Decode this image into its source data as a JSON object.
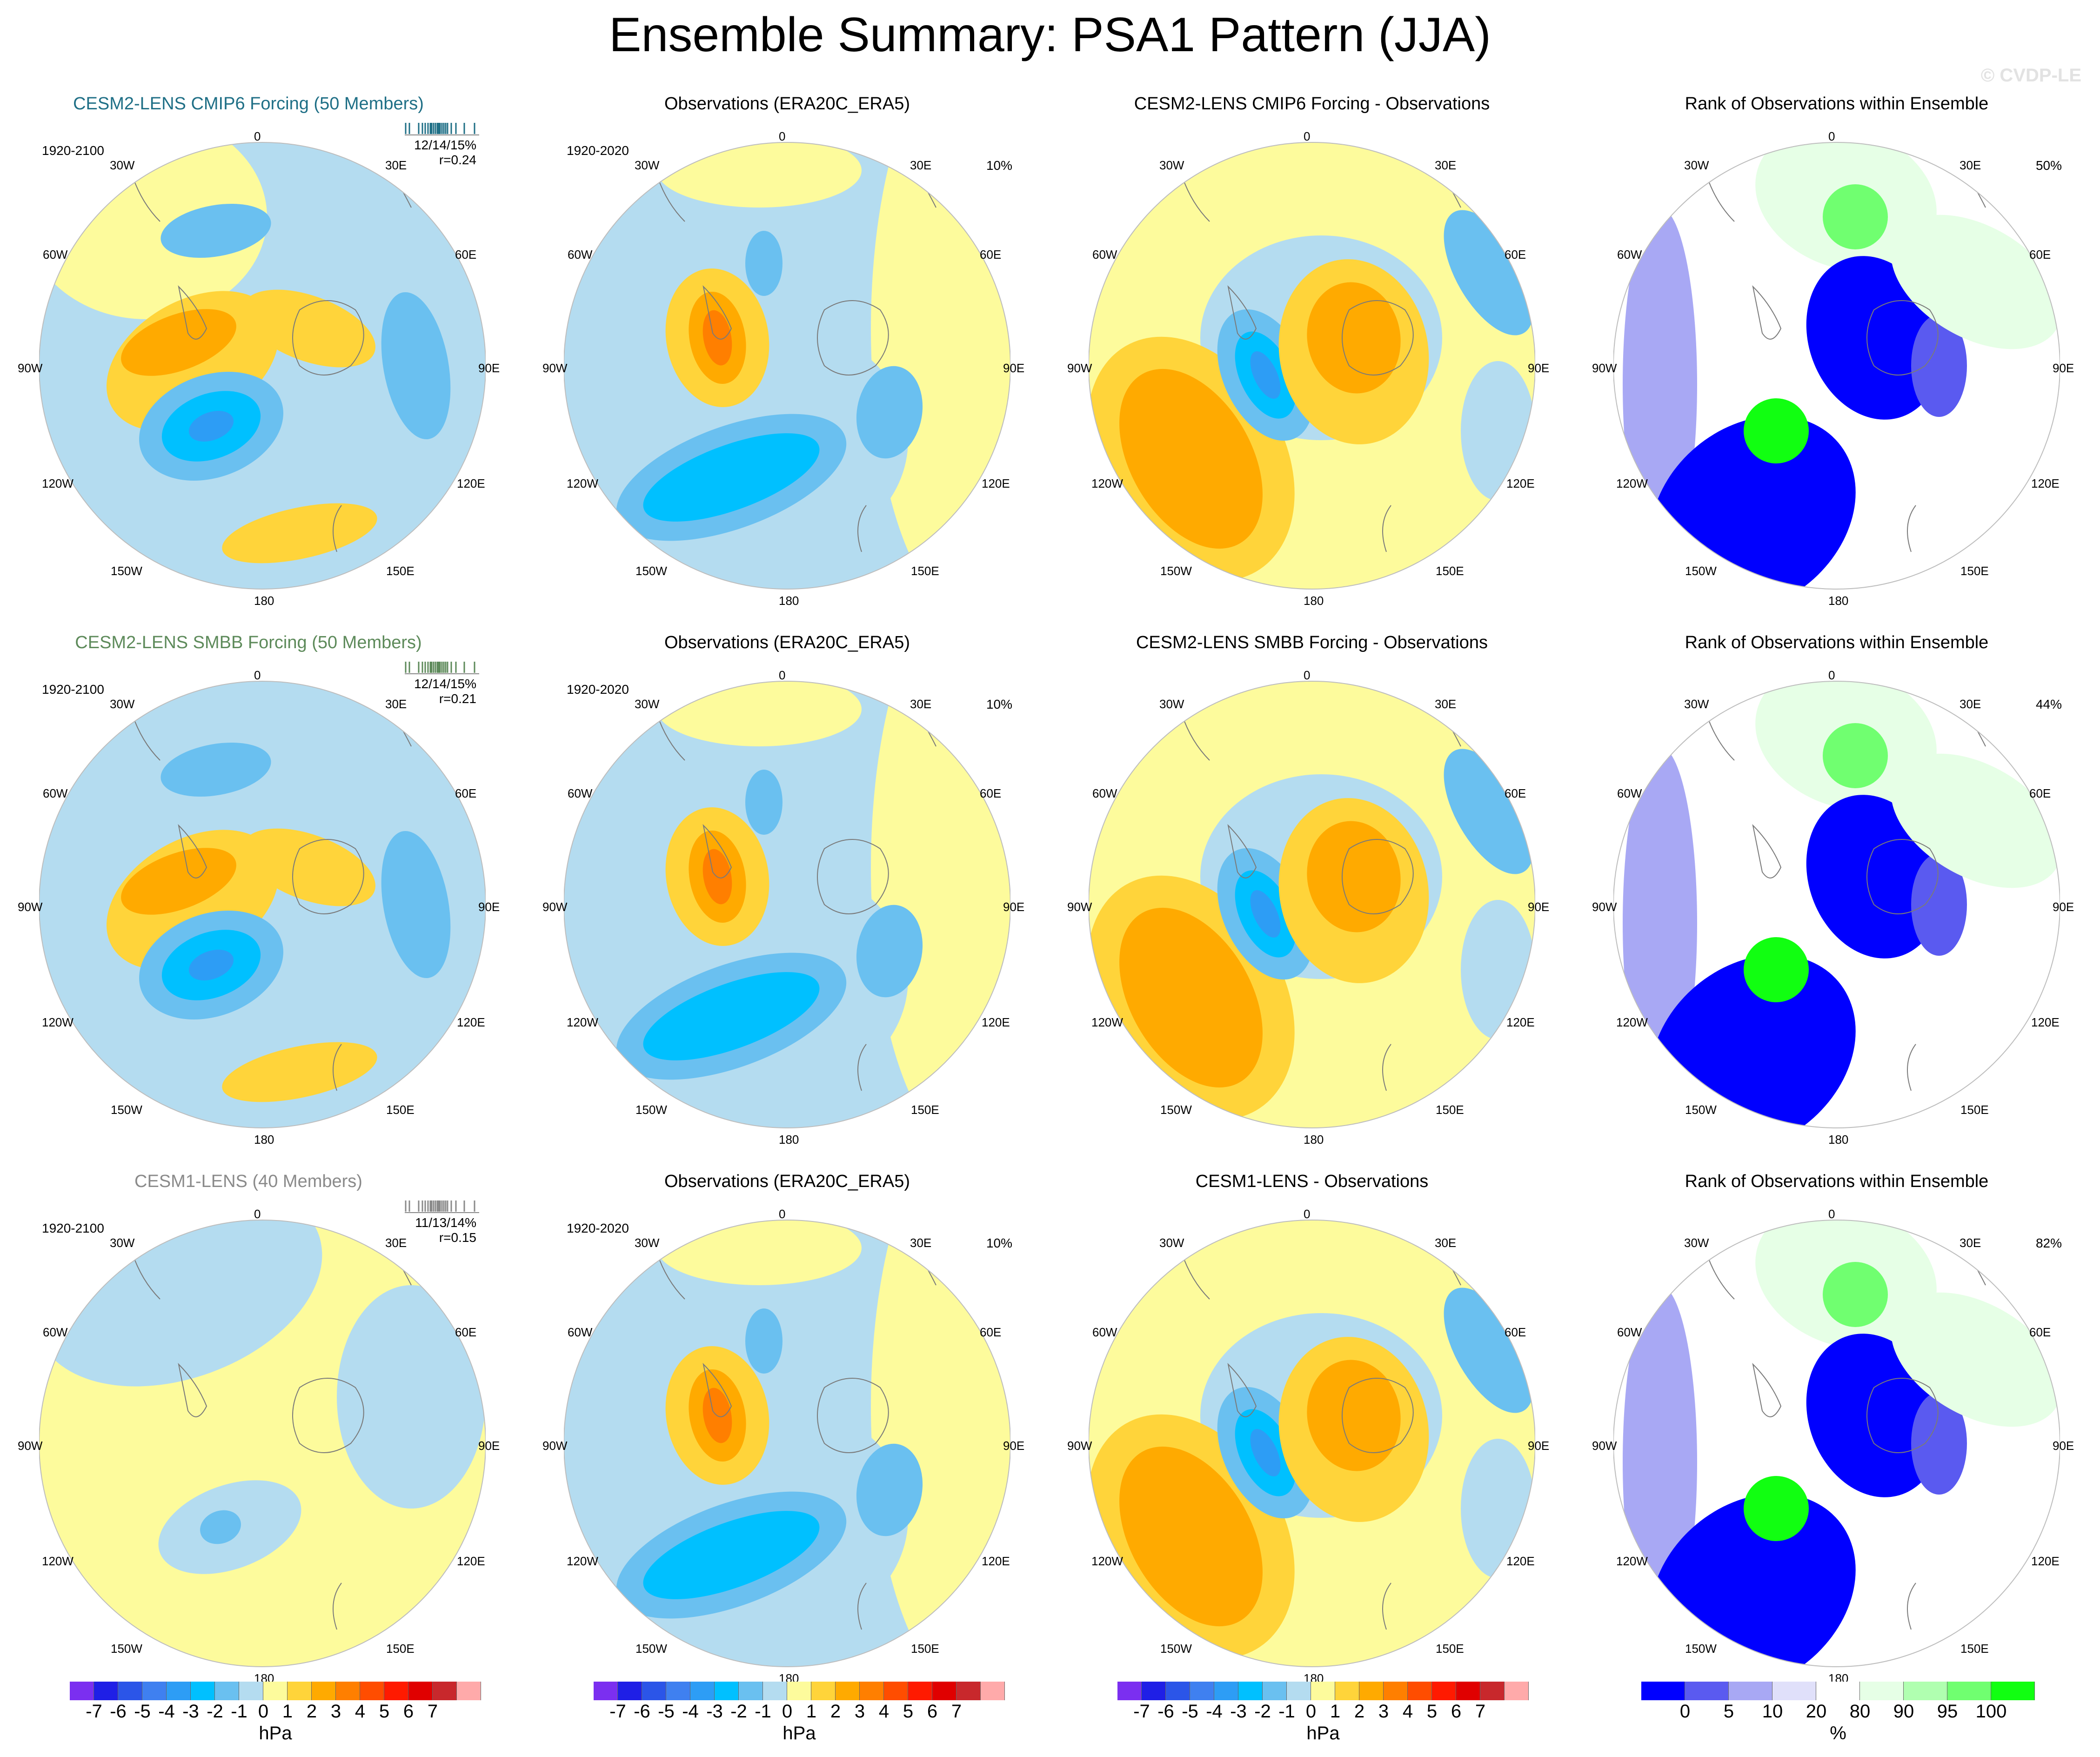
{
  "title": "Ensemble Summary: PSA1 Pattern (JJA)",
  "copyright": "© CVDP-LE",
  "map_labels": {
    "top": "0",
    "bottom": "180",
    "left": "90W",
    "right": "90E",
    "ul1": "30W",
    "ul2": "60W",
    "ur1": "30E",
    "ur2": "60E",
    "ll1": "120W",
    "ll2": "150W",
    "lr1": "120E",
    "lr2": "150E"
  },
  "rows": [
    {
      "ensemble": {
        "title": "CESM2-LENS CMIP6 Forcing (50 Members)",
        "title_color": "#1f6f86",
        "years": "1920-2100",
        "stats": "12/14/15%",
        "r": "r=0.24"
      },
      "observations": {
        "title": "Observations (ERA20C_ERA5)",
        "years": "1920-2020",
        "pct": "10%"
      },
      "difference": {
        "title": "CESM2-LENS CMIP6 Forcing - Observations"
      },
      "rank": {
        "title": "Rank of Observations within Ensemble",
        "pct": "50%"
      }
    },
    {
      "ensemble": {
        "title": "CESM2-LENS SMBB Forcing (50 Members)",
        "title_color": "#5d8a5a",
        "years": "1920-2100",
        "stats": "12/14/15%",
        "r": "r=0.21"
      },
      "observations": {
        "title": "Observations (ERA20C_ERA5)",
        "years": "1920-2020",
        "pct": "10%"
      },
      "difference": {
        "title": "CESM2-LENS SMBB Forcing - Observations"
      },
      "rank": {
        "title": "Rank of Observations within Ensemble",
        "pct": "44%"
      }
    },
    {
      "ensemble": {
        "title": "CESM1-LENS (40 Members)",
        "title_color": "#8a8a8a",
        "years": "1920-2100",
        "stats": "11/13/14%",
        "r": "r=0.15"
      },
      "observations": {
        "title": "Observations (ERA20C_ERA5)",
        "years": "1920-2020",
        "pct": "10%"
      },
      "difference": {
        "title": "CESM1-LENS - Observations"
      },
      "rank": {
        "title": "Rank of Observations within Ensemble",
        "pct": "82%"
      }
    }
  ],
  "colorbar_hpa": {
    "units": "hPa",
    "colors": [
      "#7b2ff0",
      "#1f1fe6",
      "#2b55e8",
      "#3f80f0",
      "#2d9df5",
      "#00c0ff",
      "#6ac0f0",
      "#b4dcf0",
      "#fdfb9c",
      "#ffd43a",
      "#ffaa00",
      "#ff7f00",
      "#ff4d00",
      "#ff1a00",
      "#e00000",
      "#c8282c",
      "#ffaaaa"
    ],
    "labels": [
      "-7",
      "-6",
      "-5",
      "-4",
      "-3",
      "-2",
      "-1",
      "0",
      "1",
      "2",
      "3",
      "4",
      "5",
      "6",
      "7"
    ]
  },
  "colorbar_rank": {
    "units": "%",
    "colors": [
      "#0000ff",
      "#5a5af0",
      "#a8a8f4",
      "#e0e0fa",
      "#ffffff",
      "#e6ffe6",
      "#b0ffb0",
      "#70ff70",
      "#11ff11"
    ],
    "labels": [
      "0",
      "5",
      "10",
      "20",
      "80",
      "90",
      "95",
      "100"
    ]
  },
  "legend_colors": {
    "fill_light_blue": "#b4dcf0",
    "fill_yellow": "#fdfb9c"
  }
}
